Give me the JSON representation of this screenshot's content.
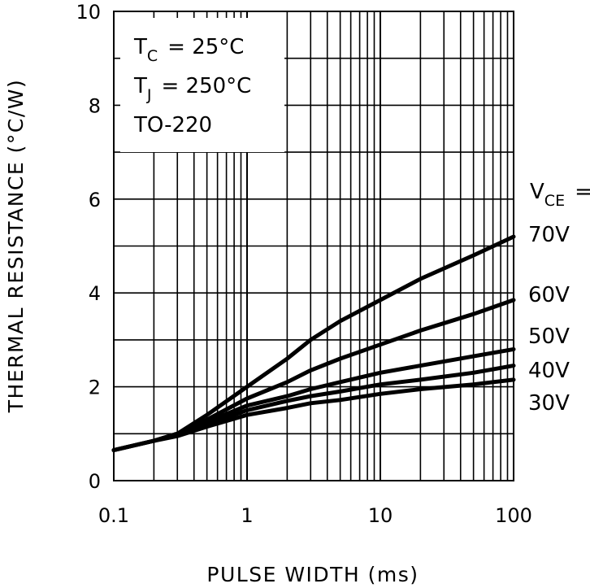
{
  "chart_data": {
    "type": "line",
    "xscale": "log",
    "xlim": [
      0.1,
      100
    ],
    "ylim": [
      0,
      10
    ],
    "xlabel": "PULSE WIDTH (ms)",
    "ylabel": "THERMAL RESISTANCE (°C/W)",
    "x_ticks": [
      "0.1",
      "1",
      "10",
      "100"
    ],
    "y_ticks": [
      "0",
      "2",
      "4",
      "6",
      "8",
      "10"
    ],
    "grid": true,
    "annotations": {
      "tc_main": "T",
      "tc_sub": "C",
      "tc_value": "= 25°C",
      "tj_main": "T",
      "tj_sub": "J",
      "tj_value": "= 250°C",
      "package": "TO-220",
      "vce_main": "V",
      "vce_sub": "CE",
      "vce_eq": "="
    },
    "series": [
      {
        "name": "70V",
        "x": [
          0.1,
          0.2,
          0.3,
          0.5,
          1,
          2,
          3,
          5,
          10,
          20,
          50,
          100
        ],
        "y": [
          0.65,
          0.85,
          1.0,
          1.4,
          2.0,
          2.6,
          3.0,
          3.4,
          3.85,
          4.3,
          4.8,
          5.2
        ]
      },
      {
        "name": "60V",
        "x": [
          0.1,
          0.2,
          0.3,
          0.5,
          1,
          2,
          3,
          5,
          10,
          20,
          50,
          100
        ],
        "y": [
          0.65,
          0.85,
          1.0,
          1.3,
          1.75,
          2.1,
          2.35,
          2.6,
          2.9,
          3.2,
          3.55,
          3.85
        ]
      },
      {
        "name": "50V",
        "x": [
          0.1,
          0.2,
          0.3,
          0.5,
          1,
          2,
          3,
          5,
          10,
          20,
          50,
          100
        ],
        "y": [
          0.65,
          0.85,
          1.0,
          1.25,
          1.6,
          1.8,
          1.95,
          2.1,
          2.3,
          2.45,
          2.65,
          2.8
        ]
      },
      {
        "name": "40V",
        "x": [
          0.1,
          0.2,
          0.3,
          0.5,
          1,
          2,
          3,
          5,
          10,
          20,
          50,
          100
        ],
        "y": [
          0.65,
          0.85,
          1.0,
          1.2,
          1.5,
          1.7,
          1.8,
          1.9,
          2.05,
          2.15,
          2.3,
          2.45
        ]
      },
      {
        "name": "30V",
        "x": [
          0.1,
          0.2,
          0.3,
          0.5,
          1,
          2,
          3,
          5,
          10,
          20,
          50,
          100
        ],
        "y": [
          0.65,
          0.85,
          0.95,
          1.15,
          1.4,
          1.55,
          1.65,
          1.72,
          1.85,
          1.95,
          2.05,
          2.15
        ]
      }
    ]
  }
}
